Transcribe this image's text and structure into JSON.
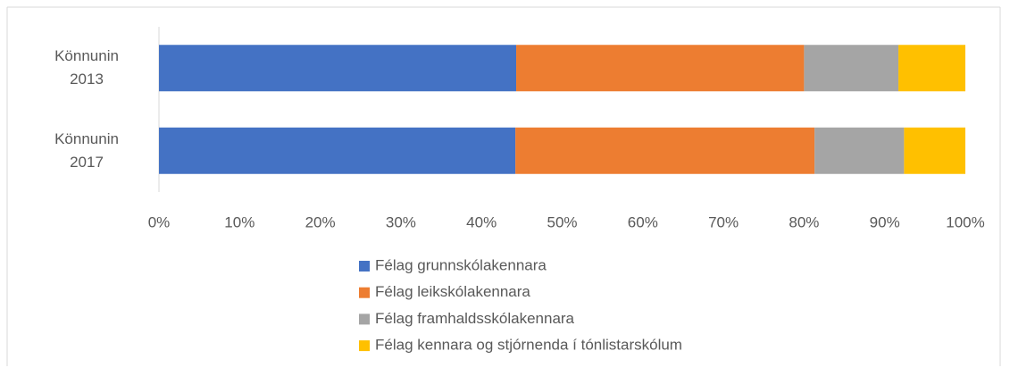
{
  "chart_data": {
    "type": "stacked-bar-horizontal",
    "categories": [
      "Könnunin 2013",
      "Könnunin 2017"
    ],
    "series": [
      {
        "name": "Félag grunnskólakennara",
        "color": "#4472c4",
        "values": [
          44.3,
          44.2
        ]
      },
      {
        "name": "Félag leikskólakennara",
        "color": "#ed7d31",
        "values": [
          35.7,
          37.1
        ]
      },
      {
        "name": "Félag framhaldsskólakennara",
        "color": "#a5a5a5",
        "values": [
          11.7,
          11.1
        ]
      },
      {
        "name": "Félag kennara og stjórnenda í tónlistarskólum",
        "color": "#ffc000",
        "values": [
          8.3,
          7.6
        ]
      }
    ],
    "xlim": [
      0,
      100
    ],
    "xticks": [
      {
        "value": 0,
        "label": "0%"
      },
      {
        "value": 10,
        "label": "10%"
      },
      {
        "value": 20,
        "label": "20%"
      },
      {
        "value": 30,
        "label": "30%"
      },
      {
        "value": 40,
        "label": "40%"
      },
      {
        "value": 50,
        "label": "50%"
      },
      {
        "value": 60,
        "label": "60%"
      },
      {
        "value": 70,
        "label": "70%"
      },
      {
        "value": 80,
        "label": "80%"
      },
      {
        "value": 90,
        "label": "90%"
      },
      {
        "value": 100,
        "label": "100%"
      }
    ],
    "grid": false,
    "legend": "bottom"
  }
}
